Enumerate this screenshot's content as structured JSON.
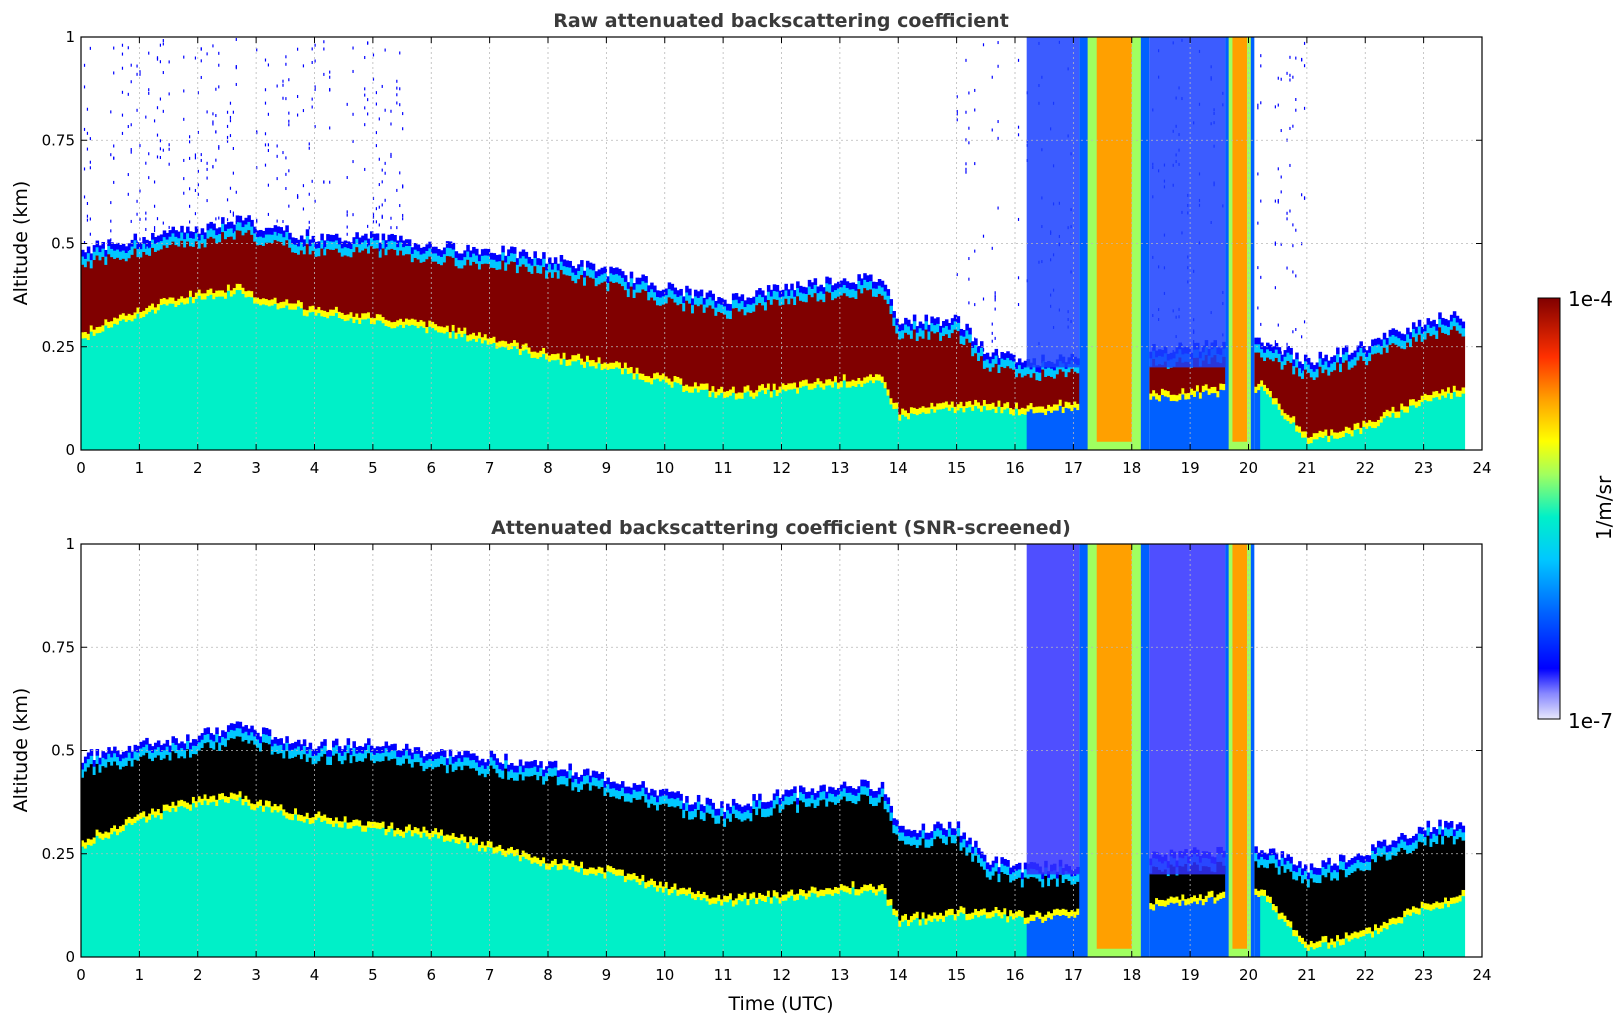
{
  "chart_data": [
    {
      "type": "heatmap",
      "title": "Raw attenuated backscattering coefficient",
      "xlabel": "",
      "ylabel": "Altitude (km)",
      "xlim": [
        0,
        24
      ],
      "ylim": [
        0,
        1
      ],
      "xticks": [
        0,
        1,
        2,
        3,
        4,
        5,
        6,
        7,
        8,
        9,
        10,
        11,
        12,
        13,
        14,
        15,
        16,
        17,
        18,
        19,
        20,
        21,
        22,
        23,
        24
      ],
      "yticks": [
        0,
        0.25,
        0.5,
        0.75,
        1
      ],
      "ytick_labels": [
        "0",
        "0.25",
        "0.5",
        "0.75",
        "1"
      ],
      "grid": true,
      "screened": false,
      "aerosol_layer_top_km": [
        [
          0,
          0.47
        ],
        [
          1,
          0.5
        ],
        [
          2,
          0.52
        ],
        [
          2.7,
          0.55
        ],
        [
          3,
          0.53
        ],
        [
          4,
          0.5
        ],
        [
          5,
          0.5
        ],
        [
          6,
          0.48
        ],
        [
          7,
          0.47
        ],
        [
          8,
          0.45
        ],
        [
          9,
          0.42
        ],
        [
          10,
          0.38
        ],
        [
          11,
          0.35
        ],
        [
          12,
          0.38
        ],
        [
          13,
          0.4
        ],
        [
          13.7,
          0.4
        ],
        [
          14,
          0.3
        ],
        [
          15,
          0.3
        ],
        [
          15.5,
          0.22
        ],
        [
          16.2,
          0.2
        ],
        [
          20.2,
          0.25
        ],
        [
          21,
          0.2
        ],
        [
          22,
          0.24
        ],
        [
          23,
          0.3
        ],
        [
          23.7,
          0.31
        ]
      ],
      "aerosol_layer_base_km": [
        [
          0,
          0.27
        ],
        [
          1,
          0.33
        ],
        [
          2,
          0.37
        ],
        [
          2.7,
          0.38
        ],
        [
          3,
          0.36
        ],
        [
          4,
          0.33
        ],
        [
          5,
          0.31
        ],
        [
          6,
          0.29
        ],
        [
          7,
          0.26
        ],
        [
          8,
          0.22
        ],
        [
          9,
          0.2
        ],
        [
          10,
          0.16
        ],
        [
          11,
          0.13
        ],
        [
          12,
          0.14
        ],
        [
          13,
          0.16
        ],
        [
          13.7,
          0.16
        ],
        [
          14,
          0.08
        ],
        [
          15,
          0.1
        ],
        [
          15.5,
          0.1
        ],
        [
          16.2,
          0.09
        ],
        [
          20.2,
          0.15
        ],
        [
          21,
          0.02
        ],
        [
          22,
          0.05
        ],
        [
          23,
          0.12
        ],
        [
          23.7,
          0.14
        ]
      ],
      "cloud_intervals_utc": [
        [
          17.1,
          18.3
        ],
        [
          19.6,
          20.1
        ]
      ]
    },
    {
      "type": "heatmap",
      "title": "Attenuated backscattering coefficient (SNR-screened)",
      "xlabel": "Time (UTC)",
      "ylabel": "Altitude (km)",
      "xlim": [
        0,
        24
      ],
      "ylim": [
        0,
        1
      ],
      "xticks": [
        0,
        1,
        2,
        3,
        4,
        5,
        6,
        7,
        8,
        9,
        10,
        11,
        12,
        13,
        14,
        15,
        16,
        17,
        18,
        19,
        20,
        21,
        22,
        23,
        24
      ],
      "yticks": [
        0,
        0.25,
        0.5,
        0.75,
        1
      ],
      "ytick_labels": [
        "0",
        "0.25",
        "0.5",
        "0.75",
        "1"
      ],
      "grid": true,
      "screened": true,
      "aerosol_layer_top_km": [
        [
          0,
          0.47
        ],
        [
          1,
          0.5
        ],
        [
          2,
          0.52
        ],
        [
          2.7,
          0.55
        ],
        [
          3,
          0.53
        ],
        [
          4,
          0.5
        ],
        [
          5,
          0.5
        ],
        [
          6,
          0.48
        ],
        [
          7,
          0.47
        ],
        [
          8,
          0.45
        ],
        [
          9,
          0.42
        ],
        [
          10,
          0.38
        ],
        [
          11,
          0.35
        ],
        [
          12,
          0.38
        ],
        [
          13,
          0.4
        ],
        [
          13.7,
          0.4
        ],
        [
          14,
          0.3
        ],
        [
          15,
          0.3
        ],
        [
          15.5,
          0.22
        ],
        [
          16.2,
          0.2
        ],
        [
          20.2,
          0.25
        ],
        [
          21,
          0.2
        ],
        [
          22,
          0.24
        ],
        [
          23,
          0.3
        ],
        [
          23.7,
          0.31
        ]
      ],
      "aerosol_layer_base_km": [
        [
          0,
          0.27
        ],
        [
          1,
          0.33
        ],
        [
          2,
          0.37
        ],
        [
          2.7,
          0.38
        ],
        [
          3,
          0.36
        ],
        [
          4,
          0.33
        ],
        [
          5,
          0.31
        ],
        [
          6,
          0.29
        ],
        [
          7,
          0.26
        ],
        [
          8,
          0.22
        ],
        [
          9,
          0.2
        ],
        [
          10,
          0.16
        ],
        [
          11,
          0.13
        ],
        [
          12,
          0.14
        ],
        [
          13,
          0.16
        ],
        [
          13.7,
          0.16
        ],
        [
          14,
          0.08
        ],
        [
          15,
          0.1
        ],
        [
          15.5,
          0.1
        ],
        [
          16.2,
          0.09
        ],
        [
          20.2,
          0.15
        ],
        [
          21,
          0.02
        ],
        [
          22,
          0.05
        ],
        [
          23,
          0.12
        ],
        [
          23.7,
          0.14
        ]
      ],
      "cloud_intervals_utc": [
        [
          17.1,
          18.3
        ],
        [
          19.6,
          20.1
        ]
      ]
    }
  ],
  "colorbar": {
    "label": "1/m/sr",
    "max_label": "1e-4",
    "min_label": "1e-7",
    "colormap": [
      "#e8e8fb",
      "#0000ff",
      "#0060ff",
      "#00c8ff",
      "#00f0c8",
      "#a0ff60",
      "#ffff00",
      "#ffa000",
      "#ff3000",
      "#800000"
    ]
  }
}
